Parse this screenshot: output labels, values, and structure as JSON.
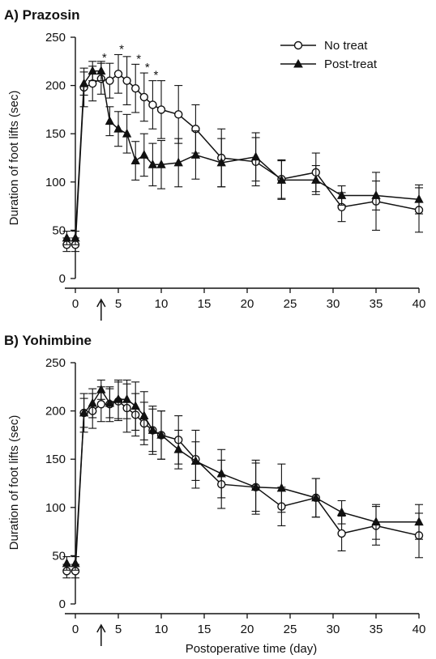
{
  "chart_data": [
    {
      "type": "line",
      "title": "A) Prazosin",
      "ylabel": "Duration of foot lifts (sec)",
      "xlabel": "",
      "ylim": [
        0,
        250
      ],
      "xlim": [
        -2,
        40
      ],
      "yticks": [
        0,
        50,
        100,
        150,
        200,
        250
      ],
      "xticks": [
        0,
        5,
        10,
        15,
        20,
        25,
        30,
        35,
        40
      ],
      "grid": false,
      "legend": "top-right",
      "treatment_arrow_day": 3,
      "significance_marker": "*",
      "significant_days": [
        3,
        5,
        7,
        8,
        9
      ],
      "series": [
        {
          "name": "No treat",
          "marker": "open-circle",
          "x": [
            -1,
            0,
            1,
            2,
            3,
            4,
            5,
            6,
            7,
            8,
            9,
            10,
            12,
            14,
            17,
            21,
            24,
            28,
            31,
            35,
            40
          ],
          "y": [
            35,
            35,
            198,
            202,
            207,
            205,
            212,
            205,
            197,
            188,
            180,
            175,
            170,
            155,
            125,
            121,
            103,
            110,
            74,
            80,
            71
          ],
          "err": [
            7,
            7,
            20,
            18,
            16,
            18,
            20,
            25,
            25,
            25,
            25,
            30,
            30,
            25,
            30,
            25,
            20,
            20,
            15,
            30,
            23
          ]
        },
        {
          "name": "Post-treat",
          "marker": "filled-triangle",
          "x": [
            -1,
            0,
            1,
            2,
            3,
            4,
            5,
            6,
            7,
            8,
            9,
            10,
            12,
            14,
            17,
            21,
            24,
            28,
            31,
            35,
            40
          ],
          "y": [
            42,
            42,
            202,
            215,
            215,
            163,
            155,
            150,
            122,
            128,
            118,
            118,
            120,
            128,
            120,
            126,
            102,
            102,
            86,
            86,
            82
          ],
          "err": [
            7,
            7,
            12,
            10,
            10,
            15,
            18,
            20,
            20,
            22,
            22,
            25,
            25,
            25,
            25,
            25,
            20,
            15,
            10,
            15,
            15
          ]
        }
      ]
    },
    {
      "type": "line",
      "title": "B) Yohimbine",
      "ylabel": "Duration of foot lifts (sec)",
      "xlabel": "Postoperative time (day)",
      "ylim": [
        0,
        250
      ],
      "xlim": [
        -2,
        40
      ],
      "yticks": [
        0,
        50,
        100,
        150,
        200,
        250
      ],
      "xticks": [
        0,
        5,
        10,
        15,
        20,
        25,
        30,
        35,
        40
      ],
      "grid": false,
      "legend": "none",
      "treatment_arrow_day": 3,
      "series": [
        {
          "name": "No treat",
          "marker": "open-circle",
          "x": [
            -1,
            0,
            1,
            2,
            3,
            4,
            5,
            6,
            7,
            8,
            9,
            10,
            12,
            14,
            17,
            21,
            24,
            28,
            31,
            35,
            40
          ],
          "y": [
            34,
            34,
            198,
            200,
            207,
            207,
            210,
            203,
            196,
            187,
            180,
            175,
            170,
            150,
            124,
            121,
            101,
            110,
            73,
            81,
            71
          ],
          "err": [
            7,
            7,
            20,
            18,
            18,
            18,
            20,
            25,
            22,
            22,
            22,
            25,
            25,
            30,
            25,
            25,
            20,
            20,
            18,
            20,
            23
          ]
        },
        {
          "name": "Post-treat",
          "marker": "filled-triangle",
          "x": [
            -1,
            0,
            1,
            2,
            3,
            4,
            5,
            6,
            7,
            8,
            9,
            10,
            12,
            14,
            17,
            21,
            24,
            28,
            31,
            35,
            40
          ],
          "y": [
            42,
            42,
            198,
            208,
            222,
            208,
            212,
            212,
            205,
            195,
            180,
            175,
            160,
            148,
            135,
            121,
            120,
            110,
            95,
            85,
            85
          ],
          "err": [
            7,
            7,
            15,
            15,
            10,
            15,
            20,
            20,
            25,
            25,
            25,
            25,
            20,
            20,
            25,
            28,
            25,
            20,
            12,
            18,
            18
          ]
        }
      ]
    }
  ],
  "legend": {
    "items": [
      {
        "label": "No treat",
        "marker": "open-circle"
      },
      {
        "label": "Post-treat",
        "marker": "filled-triangle"
      }
    ]
  }
}
